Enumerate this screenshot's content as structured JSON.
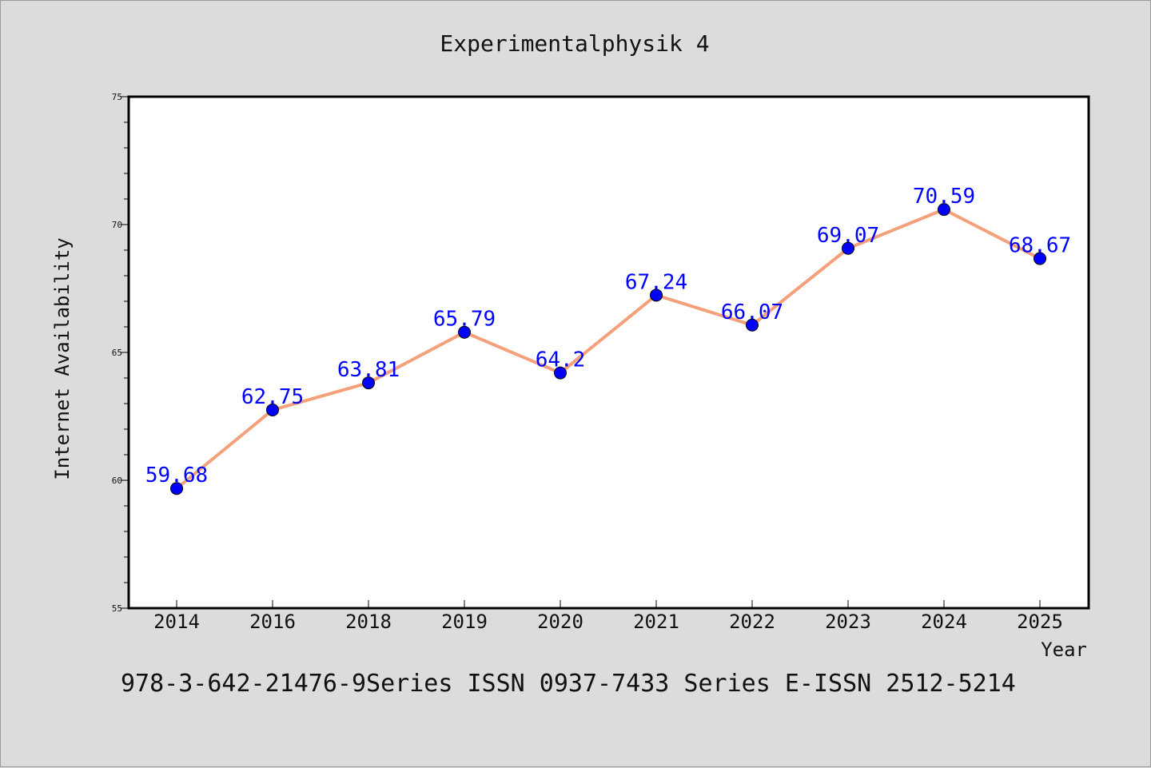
{
  "chart_data": {
    "type": "line",
    "title": "Experimentalphysik 4",
    "xlabel": "Year",
    "ylabel": "Internet Availability",
    "categories": [
      "2014",
      "2016",
      "2018",
      "2019",
      "2020",
      "2021",
      "2022",
      "2023",
      "2024",
      "2025"
    ],
    "series": [
      {
        "values": [
          59.68,
          62.75,
          63.81,
          65.79,
          64.2,
          67.24,
          66.07,
          69.07,
          70.59,
          68.67
        ],
        "labels": [
          "59.68",
          "62.75",
          "63.81",
          "65.79",
          "64.2",
          "67.24",
          "66.07",
          "69.07",
          "70.59",
          "68.67"
        ]
      }
    ],
    "ylim": [
      55,
      75
    ],
    "yticks": [
      "55",
      "60",
      "65",
      "70",
      "75"
    ],
    "grid": false,
    "line_color": "#f4a07a",
    "marker_color": "#0000ff",
    "label_color": "#0000ff"
  },
  "footer": {
    "text": "978-3-642-21476-9Series ISSN 0937-7433 Series E-ISSN 2512-5214"
  }
}
